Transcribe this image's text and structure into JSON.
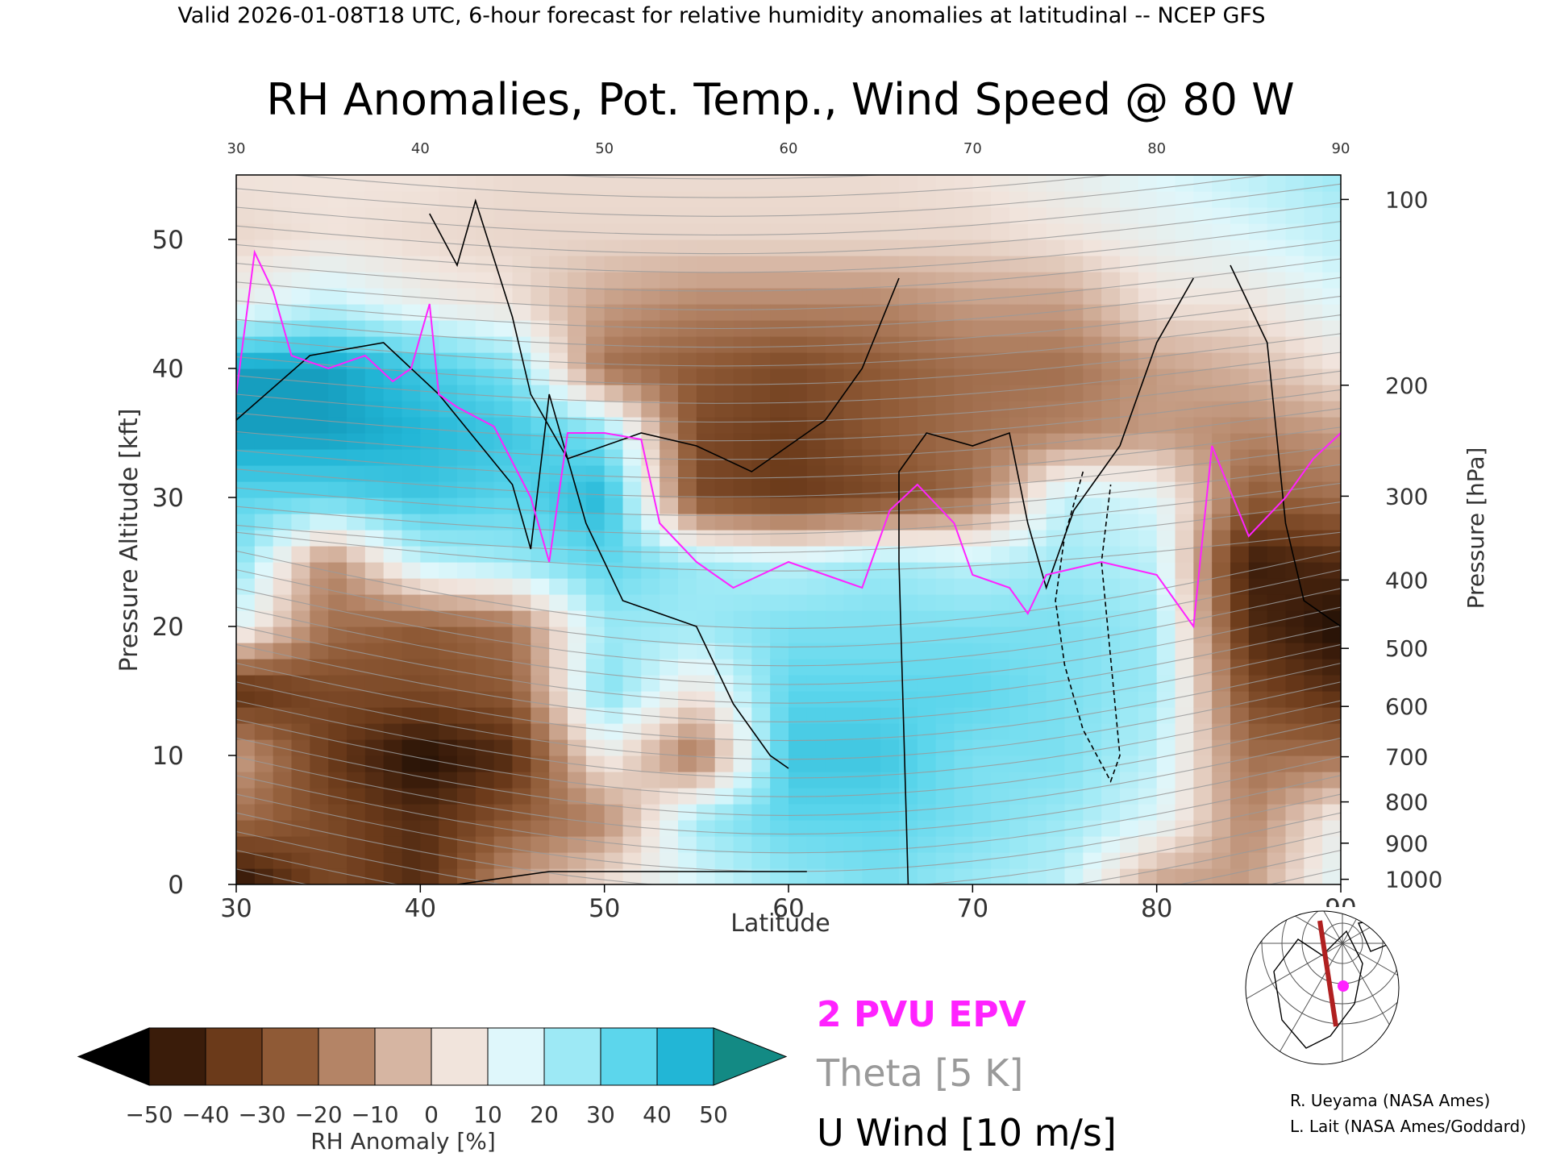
{
  "header": "Valid 2026-01-08T18 UTC, 6-hour forecast for relative humidity anomalies at latitudinal -- NCEP GFS",
  "chart_data": {
    "type": "heatmap",
    "title": "RH Anomalies, Pot. Temp., Wind Speed @ 80 W",
    "xlabel": "Latitude",
    "ylabel_left": "Pressure Altitude [kft]",
    "ylabel_right": "Pressure [hPa]",
    "xlim": [
      30,
      90
    ],
    "ylim_kft": [
      0,
      55
    ],
    "x_ticks": [
      30,
      40,
      50,
      60,
      70,
      80,
      90
    ],
    "y_ticks_kft": [
      0,
      10,
      20,
      30,
      40,
      50
    ],
    "pressure_ticks": [
      {
        "hpa": 100,
        "kft": 53.1
      },
      {
        "hpa": 200,
        "kft": 38.7
      },
      {
        "hpa": 300,
        "kft": 30.1
      },
      {
        "hpa": 400,
        "kft": 23.6
      },
      {
        "hpa": 500,
        "kft": 18.3
      },
      {
        "hpa": 600,
        "kft": 13.8
      },
      {
        "hpa": 700,
        "kft": 9.9
      },
      {
        "hpa": 800,
        "kft": 6.4
      },
      {
        "hpa": 900,
        "kft": 3.2
      },
      {
        "hpa": 1000,
        "kft": 0.4
      }
    ],
    "colorbar": {
      "label": "RH Anomaly [%]",
      "tick_labels": [
        "-50",
        "-40",
        "-30",
        "-20",
        "-10",
        "0",
        "10",
        "20",
        "30",
        "40",
        "50"
      ],
      "bins": [
        {
          "from": -50,
          "to": -40,
          "color": "#3a1c0a"
        },
        {
          "from": -40,
          "to": -30,
          "color": "#6b3a1a"
        },
        {
          "from": -30,
          "to": -20,
          "color": "#8f5a36"
        },
        {
          "from": -20,
          "to": -10,
          "color": "#b48466"
        },
        {
          "from": -10,
          "to": 0,
          "color": "#d6b5a2"
        },
        {
          "from": 0,
          "to": 10,
          "color": "#f1e4dc"
        },
        {
          "from": 10,
          "to": 20,
          "color": "#dff7fb"
        },
        {
          "from": 20,
          "to": 30,
          "color": "#9de9f5"
        },
        {
          "from": 30,
          "to": 40,
          "color": "#5cd6ec"
        },
        {
          "from": 40,
          "to": 50,
          "color": "#22b6d6"
        },
        {
          "from": 50,
          "to": 60,
          "color": "#0a86a8"
        }
      ],
      "under_color": "#000000",
      "over_color": "#138a84"
    },
    "legend": [
      {
        "label": "2 PVU EPV",
        "color": "#ff22ff"
      },
      {
        "label": "Theta [5 K]",
        "color": "#9a9a9a"
      },
      {
        "label": "U Wind [10 m/s]",
        "color": "#000000"
      }
    ],
    "rh_anomaly_profiles": [
      {
        "lat": 30,
        "kft": [
          -50,
          -20,
          -8,
          -40,
          15,
          30,
          35,
          50,
          50,
          10,
          2,
          5
        ],
        "kft_levels": [
          0,
          5,
          10,
          15,
          20,
          25,
          30,
          35,
          40,
          45,
          50,
          55
        ]
      },
      {
        "lat": 35,
        "kft": [
          -30,
          -30,
          -35,
          -30,
          -20,
          -15,
          35,
          50,
          50,
          20,
          5,
          5
        ]
      },
      {
        "lat": 40,
        "kft": [
          -40,
          -40,
          -50,
          -30,
          -25,
          20,
          40,
          45,
          40,
          10,
          3,
          5
        ]
      },
      {
        "lat": 45,
        "kft": [
          -10,
          -25,
          -40,
          -25,
          -20,
          25,
          35,
          40,
          30,
          5,
          2,
          3
        ]
      },
      {
        "lat": 50,
        "kft": [
          5,
          -15,
          10,
          30,
          25,
          35,
          45,
          30,
          -20,
          -10,
          2,
          3
        ]
      },
      {
        "lat": 55,
        "kft": [
          15,
          25,
          -20,
          5,
          25,
          25,
          -30,
          -30,
          -25,
          -15,
          2,
          3
        ]
      },
      {
        "lat": 60,
        "kft": [
          25,
          35,
          40,
          35,
          30,
          20,
          -35,
          -35,
          -30,
          -15,
          2,
          3
        ]
      },
      {
        "lat": 65,
        "kft": [
          30,
          35,
          40,
          35,
          30,
          25,
          -30,
          -25,
          -25,
          -15,
          2,
          3
        ]
      },
      {
        "lat": 70,
        "kft": [
          25,
          30,
          30,
          35,
          30,
          20,
          -20,
          -20,
          -20,
          -10,
          2,
          5
        ]
      },
      {
        "lat": 75,
        "kft": [
          20,
          25,
          30,
          30,
          30,
          25,
          20,
          -15,
          -20,
          -10,
          5,
          10
        ]
      },
      {
        "lat": 80,
        "kft": [
          -10,
          15,
          20,
          25,
          25,
          20,
          15,
          -10,
          -10,
          5,
          10,
          15
        ]
      },
      {
        "lat": 85,
        "kft": [
          -10,
          -15,
          -20,
          -30,
          -40,
          -45,
          -25,
          -15,
          -5,
          5,
          15,
          20
        ]
      },
      {
        "lat": 90,
        "kft": [
          15,
          10,
          -20,
          -40,
          -50,
          -40,
          -20,
          -10,
          5,
          15,
          20,
          25
        ]
      }
    ],
    "epv_2pvu_line": [
      [
        30,
        38
      ],
      [
        31,
        49
      ],
      [
        32,
        46
      ],
      [
        33,
        41
      ],
      [
        35,
        40
      ],
      [
        37,
        41
      ],
      [
        38.5,
        39
      ],
      [
        39.5,
        40
      ],
      [
        40.5,
        45
      ],
      [
        41,
        38
      ],
      [
        42,
        37
      ],
      [
        44,
        35.5
      ],
      [
        46,
        30
      ],
      [
        47,
        25
      ],
      [
        48,
        35
      ],
      [
        50,
        35
      ],
      [
        52,
        34.5
      ],
      [
        53,
        28
      ],
      [
        55,
        25
      ],
      [
        57,
        23
      ],
      [
        60,
        25
      ],
      [
        62,
        24
      ],
      [
        64,
        23
      ],
      [
        65.5,
        29
      ],
      [
        67,
        31
      ],
      [
        69,
        28
      ],
      [
        70,
        24
      ],
      [
        72,
        23
      ],
      [
        73,
        21
      ],
      [
        74,
        24
      ],
      [
        77,
        25
      ],
      [
        80,
        24
      ],
      [
        82,
        20
      ],
      [
        83,
        34
      ],
      [
        85,
        27
      ],
      [
        87,
        30
      ],
      [
        88.5,
        33
      ],
      [
        90,
        35
      ]
    ],
    "u_wind_contours": [
      {
        "value": 10,
        "line": [
          [
            30,
            36
          ],
          [
            34,
            41
          ],
          [
            38,
            42
          ],
          [
            41,
            38
          ],
          [
            45,
            31
          ],
          [
            46,
            26
          ],
          [
            47,
            38
          ],
          [
            49,
            28
          ],
          [
            51,
            22
          ],
          [
            53,
            21
          ],
          [
            55,
            20
          ],
          [
            57,
            14
          ],
          [
            58,
            12
          ],
          [
            59,
            10
          ],
          [
            60,
            9
          ]
        ]
      },
      {
        "value": 30,
        "line": [
          [
            40.5,
            52
          ],
          [
            42,
            48
          ],
          [
            43,
            53
          ],
          [
            45,
            44
          ],
          [
            46,
            38
          ],
          [
            48,
            33
          ],
          [
            52,
            35
          ],
          [
            55,
            34
          ],
          [
            58,
            32
          ],
          [
            60,
            34
          ],
          [
            62,
            36
          ],
          [
            64,
            40
          ],
          [
            66,
            47
          ]
        ]
      },
      {
        "value": 0,
        "line": [
          [
            42,
            0
          ],
          [
            47,
            1
          ],
          [
            55,
            1
          ],
          [
            61,
            1
          ]
        ]
      },
      {
        "value": 0,
        "line": [
          [
            66.5,
            0
          ],
          [
            66,
            25
          ],
          [
            66,
            32
          ],
          [
            67.5,
            35
          ],
          [
            70,
            34
          ],
          [
            72,
            35
          ],
          [
            73,
            28
          ],
          [
            74,
            23
          ],
          [
            75.5,
            29
          ],
          [
            78,
            34
          ],
          [
            80,
            42
          ],
          [
            82,
            47
          ]
        ]
      },
      {
        "value": -10,
        "line": [
          [
            76,
            32
          ],
          [
            75,
            27
          ],
          [
            74.5,
            22
          ],
          [
            75,
            17
          ],
          [
            76,
            12
          ],
          [
            77.5,
            8
          ],
          [
            78,
            10
          ],
          [
            77,
            25
          ],
          [
            77.5,
            31
          ]
        ]
      },
      {
        "value": 0,
        "line": [
          [
            84,
            48
          ],
          [
            86,
            42
          ],
          [
            86.5,
            35
          ],
          [
            87,
            28
          ],
          [
            88,
            22
          ],
          [
            90,
            20
          ]
        ]
      }
    ]
  },
  "map_inset": {
    "section_longitude": 80,
    "section_lat_range": [
      30,
      90
    ]
  },
  "credits": [
    "R. Ueyama (NASA Ames)",
    "L. Lait (NASA Ames/Goddard)"
  ]
}
